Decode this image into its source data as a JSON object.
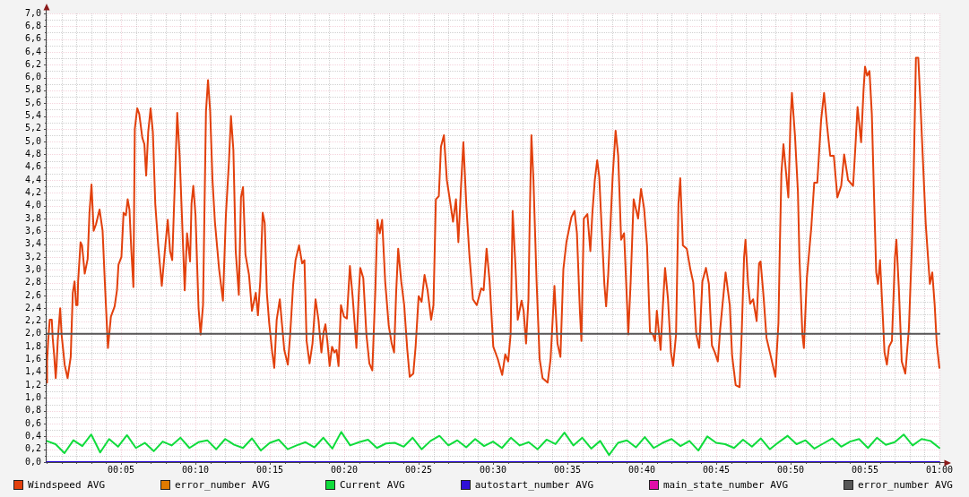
{
  "chart_data": {
    "type": "line",
    "legend": "bottom",
    "grid": true,
    "marker": "none",
    "xlim": [
      0,
      1
    ],
    "xticks": [
      {
        "value": 0,
        "label": null
      },
      {
        "value": 0.0167,
        "label": null
      },
      {
        "value": 0.0333,
        "label": null
      },
      {
        "value": 0.05,
        "label": null
      },
      {
        "value": 0.0667,
        "label": null
      },
      {
        "value": 0.0833,
        "label": "00:05"
      },
      {
        "value": 0.1,
        "label": null
      },
      {
        "value": 0.1167,
        "label": null
      },
      {
        "value": 0.1333,
        "label": null
      },
      {
        "value": 0.15,
        "label": null
      },
      {
        "value": 0.1667,
        "label": "00:10"
      },
      {
        "value": 0.1833,
        "label": null
      },
      {
        "value": 0.2,
        "label": null
      },
      {
        "value": 0.2167,
        "label": null
      },
      {
        "value": 0.2333,
        "label": null
      },
      {
        "value": 0.25,
        "label": "00:15"
      },
      {
        "value": 0.2667,
        "label": null
      },
      {
        "value": 0.2833,
        "label": null
      },
      {
        "value": 0.3,
        "label": null
      },
      {
        "value": 0.3167,
        "label": null
      },
      {
        "value": 0.3333,
        "label": "00:20"
      },
      {
        "value": 0.35,
        "label": null
      },
      {
        "value": 0.3667,
        "label": null
      },
      {
        "value": 0.3833,
        "label": null
      },
      {
        "value": 0.4,
        "label": null
      },
      {
        "value": 0.4167,
        "label": "00:25"
      },
      {
        "value": 0.4333,
        "label": null
      },
      {
        "value": 0.45,
        "label": null
      },
      {
        "value": 0.4667,
        "label": null
      },
      {
        "value": 0.4833,
        "label": null
      },
      {
        "value": 0.5,
        "label": "00:30"
      },
      {
        "value": 0.5167,
        "label": null
      },
      {
        "value": 0.5333,
        "label": null
      },
      {
        "value": 0.55,
        "label": null
      },
      {
        "value": 0.5667,
        "label": null
      },
      {
        "value": 0.5833,
        "label": "00:35"
      },
      {
        "value": 0.6,
        "label": null
      },
      {
        "value": 0.6167,
        "label": null
      },
      {
        "value": 0.6333,
        "label": null
      },
      {
        "value": 0.65,
        "label": null
      },
      {
        "value": 0.6667,
        "label": "00:40"
      },
      {
        "value": 0.6833,
        "label": null
      },
      {
        "value": 0.7,
        "label": null
      },
      {
        "value": 0.7167,
        "label": null
      },
      {
        "value": 0.7333,
        "label": null
      },
      {
        "value": 0.75,
        "label": "00:45"
      },
      {
        "value": 0.7667,
        "label": null
      },
      {
        "value": 0.7833,
        "label": null
      },
      {
        "value": 0.8,
        "label": null
      },
      {
        "value": 0.8167,
        "label": null
      },
      {
        "value": 0.8333,
        "label": "00:50"
      },
      {
        "value": 0.85,
        "label": null
      },
      {
        "value": 0.8667,
        "label": null
      },
      {
        "value": 0.8833,
        "label": null
      },
      {
        "value": 0.9,
        "label": null
      },
      {
        "value": 0.9167,
        "label": "00:55"
      },
      {
        "value": 0.9333,
        "label": null
      },
      {
        "value": 0.95,
        "label": null
      },
      {
        "value": 0.9667,
        "label": null
      },
      {
        "value": 0.9833,
        "label": null
      },
      {
        "value": 1,
        "label": "01:00"
      }
    ],
    "ylim": [
      0,
      7
    ],
    "yticks": [
      {
        "value": 0,
        "label": "0,0"
      },
      {
        "value": 0.1,
        "label": null
      },
      {
        "value": 0.2,
        "label": "0,2"
      },
      {
        "value": 0.3,
        "label": null
      },
      {
        "value": 0.4,
        "label": "0,4"
      },
      {
        "value": 0.5,
        "label": null
      },
      {
        "value": 0.6,
        "label": "0,6"
      },
      {
        "value": 0.7,
        "label": null
      },
      {
        "value": 0.8,
        "label": "0,8"
      },
      {
        "value": 0.9,
        "label": null
      },
      {
        "value": 1,
        "label": "1,0"
      },
      {
        "value": 1.1,
        "label": null
      },
      {
        "value": 1.2,
        "label": "1,2"
      },
      {
        "value": 1.3,
        "label": null
      },
      {
        "value": 1.4,
        "label": "1,4"
      },
      {
        "value": 1.5,
        "label": null
      },
      {
        "value": 1.6,
        "label": "1,6"
      },
      {
        "value": 1.7,
        "label": null
      },
      {
        "value": 1.8,
        "label": "1,8"
      },
      {
        "value": 1.9,
        "label": null
      },
      {
        "value": 2,
        "label": "2,0"
      },
      {
        "value": 2.1,
        "label": null
      },
      {
        "value": 2.2,
        "label": "2,2"
      },
      {
        "value": 2.3,
        "label": null
      },
      {
        "value": 2.4,
        "label": "2,4"
      },
      {
        "value": 2.5,
        "label": null
      },
      {
        "value": 2.6,
        "label": "2,6"
      },
      {
        "value": 2.7,
        "label": null
      },
      {
        "value": 2.8,
        "label": "2,8"
      },
      {
        "value": 2.9,
        "label": null
      },
      {
        "value": 3,
        "label": "3,0"
      },
      {
        "value": 3.1,
        "label": null
      },
      {
        "value": 3.2,
        "label": "3,2"
      },
      {
        "value": 3.3,
        "label": null
      },
      {
        "value": 3.4,
        "label": "3,4"
      },
      {
        "value": 3.5,
        "label": null
      },
      {
        "value": 3.6,
        "label": "3,6"
      },
      {
        "value": 3.7,
        "label": null
      },
      {
        "value": 3.8,
        "label": "3,8"
      },
      {
        "value": 3.9,
        "label": null
      },
      {
        "value": 4,
        "label": "4,0"
      },
      {
        "value": 4.1,
        "label": null
      },
      {
        "value": 4.2,
        "label": "4,2"
      },
      {
        "value": 4.3,
        "label": null
      },
      {
        "value": 4.4,
        "label": "4,4"
      },
      {
        "value": 4.5,
        "label": null
      },
      {
        "value": 4.6,
        "label": "4,6"
      },
      {
        "value": 4.7,
        "label": null
      },
      {
        "value": 4.8,
        "label": "4,8"
      },
      {
        "value": 4.9,
        "label": null
      },
      {
        "value": 5,
        "label": "5,0"
      },
      {
        "value": 5.1,
        "label": null
      },
      {
        "value": 5.2,
        "label": "5,2"
      },
      {
        "value": 5.3,
        "label": null
      },
      {
        "value": 5.4,
        "label": "5,4"
      },
      {
        "value": 5.5,
        "label": null
      },
      {
        "value": 5.6,
        "label": "5,6"
      },
      {
        "value": 5.7,
        "label": null
      },
      {
        "value": 5.8,
        "label": "5,8"
      },
      {
        "value": 5.9,
        "label": null
      },
      {
        "value": 6,
        "label": "6,0"
      },
      {
        "value": 6.1,
        "label": null
      },
      {
        "value": 6.2,
        "label": "6,2"
      },
      {
        "value": 6.3,
        "label": null
      },
      {
        "value": 6.4,
        "label": "6,4"
      },
      {
        "value": 6.5,
        "label": null
      },
      {
        "value": 6.6,
        "label": "6,6"
      },
      {
        "value": 6.7,
        "label": null
      },
      {
        "value": 6.8,
        "label": "6,8"
      },
      {
        "value": 6.9,
        "label": null
      },
      {
        "value": 7,
        "label": "7,0"
      }
    ],
    "series": [
      {
        "name": "Windspeed AVG",
        "color": "#e2400c",
        "x": [
          0,
          0.0005,
          0.0018,
          0.0035,
          0.0058,
          0.0068,
          0.0085,
          0.0102,
          0.0112,
          0.0125,
          0.0152,
          0.0168,
          0.0202,
          0.0235,
          0.027,
          0.0293,
          0.0313,
          0.033,
          0.0346,
          0.0353,
          0.038,
          0.0397,
          0.0427,
          0.046,
          0.048,
          0.0503,
          0.0527,
          0.0553,
          0.0593,
          0.0627,
          0.0653,
          0.0687,
          0.072,
          0.0762,
          0.0788,
          0.0805,
          0.0838,
          0.0862,
          0.0888,
          0.0908,
          0.0928,
          0.0948,
          0.0972,
          0.0988,
          0.1015,
          0.1038,
          0.1072,
          0.1095,
          0.1115,
          0.1138,
          0.1165,
          0.119,
          0.1217,
          0.125,
          0.129,
          0.133,
          0.1357,
          0.1383,
          0.1407,
          0.1433,
          0.1463,
          0.149,
          0.1513,
          0.1547,
          0.1573,
          0.1607,
          0.1623,
          0.1643,
          0.1668,
          0.1702,
          0.1725,
          0.1752,
          0.1785,
          0.1808,
          0.1832,
          0.1858,
          0.1885,
          0.1932,
          0.1975,
          0.2008,
          0.2042,
          0.2065,
          0.2092,
          0.2118,
          0.2153,
          0.2177,
          0.22,
          0.2227,
          0.2267,
          0.23,
          0.2343,
          0.2367,
          0.2393,
          0.242,
          0.2443,
          0.2467,
          0.2493,
          0.2527,
          0.255,
          0.2577,
          0.2612,
          0.2635,
          0.2662,
          0.2702,
          0.2728,
          0.2762,
          0.2788,
          0.2828,
          0.2862,
          0.2888,
          0.2912,
          0.2945,
          0.2978,
          0.3012,
          0.3045,
          0.3078,
          0.3103,
          0.3123,
          0.3147,
          0.317,
          0.3197,
          0.3223,
          0.3247,
          0.327,
          0.3297,
          0.333,
          0.3363,
          0.3397,
          0.343,
          0.347,
          0.3497,
          0.3513,
          0.3547,
          0.3582,
          0.3615,
          0.3648,
          0.3682,
          0.3705,
          0.3732,
          0.3758,
          0.3792,
          0.3832,
          0.3865,
          0.3892,
          0.3915,
          0.3938,
          0.3972,
          0.4005,
          0.404,
          0.4067,
          0.4107,
          0.4133,
          0.4167,
          0.42,
          0.4233,
          0.4267,
          0.4307,
          0.4333,
          0.436,
          0.4393,
          0.4417,
          0.445,
          0.4483,
          0.4518,
          0.4552,
          0.4585,
          0.4612,
          0.4642,
          0.4668,
          0.4702,
          0.4735,
          0.4775,
          0.4818,
          0.4868,
          0.4895,
          0.4928,
          0.4962,
          0.5003,
          0.5053,
          0.5103,
          0.5137,
          0.517,
          0.5197,
          0.522,
          0.5253,
          0.5277,
          0.532,
          0.5343,
          0.537,
          0.5397,
          0.541,
          0.543,
          0.5453,
          0.5488,
          0.5522,
          0.5555,
          0.5612,
          0.5645,
          0.5688,
          0.5722,
          0.5755,
          0.5788,
          0.5822,
          0.5855,
          0.5878,
          0.5913,
          0.594,
          0.5973,
          0.599,
          0.6017,
          0.6057,
          0.609,
          0.6113,
          0.614,
          0.6167,
          0.619,
          0.6223,
          0.6247,
          0.6267,
          0.629,
          0.634,
          0.6373,
          0.6402,
          0.6435,
          0.6468,
          0.6502,
          0.6515,
          0.6542,
          0.6575,
          0.6602,
          0.6625,
          0.6658,
          0.6692,
          0.6725,
          0.6758,
          0.6792,
          0.6815,
          0.6835,
          0.6877,
          0.6903,
          0.6927,
          0.696,
          0.6993,
          0.7017,
          0.705,
          0.7077,
          0.7097,
          0.7127,
          0.717,
          0.721,
          0.7243,
          0.7277,
          0.731,
          0.7345,
          0.7385,
          0.7418,
          0.7452,
          0.7485,
          0.7518,
          0.7545,
          0.7605,
          0.7652,
          0.7678,
          0.7718,
          0.7762,
          0.7785,
          0.7812,
          0.7828,
          0.7857,
          0.788,
          0.7913,
          0.7953,
          0.798,
          0.7997,
          0.803,
          0.8063,
          0.8113,
          0.8163,
          0.8197,
          0.8213,
          0.823,
          0.8253,
          0.8282,
          0.8308,
          0.8332,
          0.8348,
          0.8382,
          0.8415,
          0.8432,
          0.8465,
          0.8482,
          0.8515,
          0.8565,
          0.8598,
          0.8632,
          0.8675,
          0.8708,
          0.8742,
          0.8777,
          0.8817,
          0.8857,
          0.89,
          0.8933,
          0.8977,
          0.9033,
          0.9057,
          0.9083,
          0.9123,
          0.915,
          0.9167,
          0.919,
          0.9217,
          0.9243,
          0.9268,
          0.9292,
          0.9312,
          0.9335,
          0.9358,
          0.9385,
          0.9412,
          0.9435,
          0.9468,
          0.9502,
          0.9518,
          0.9545,
          0.9578,
          0.9618,
          0.9658,
          0.9692,
          0.9712,
          0.9737,
          0.9763,
          0.9787,
          0.9813,
          0.9847,
          0.987,
          0.9893,
          0.992,
          0.9947,
          0.997,
          1
        ],
        "values": [
          1.24,
          1.57,
          1.9,
          2.22,
          2.22,
          1.94,
          1.66,
          1.31,
          1.52,
          1.9,
          2.4,
          1.99,
          1.52,
          1.31,
          1.64,
          2.64,
          2.82,
          2.45,
          2.45,
          2.82,
          3.43,
          3.38,
          2.94,
          3.17,
          3.89,
          4.33,
          3.61,
          3.71,
          3.94,
          3.61,
          2.78,
          1.78,
          2.27,
          2.43,
          2.68,
          3.08,
          3.2,
          3.89,
          3.85,
          4.1,
          3.94,
          3.33,
          2.73,
          5.2,
          5.52,
          5.43,
          5.06,
          4.96,
          4.47,
          5.15,
          5.52,
          5.15,
          4.03,
          3.38,
          2.75,
          3.38,
          3.78,
          3.29,
          3.15,
          4.22,
          5.45,
          4.78,
          3.94,
          2.68,
          3.57,
          3.13,
          4.03,
          4.31,
          3.85,
          2.4,
          1.99,
          2.45,
          5.47,
          5.96,
          5.47,
          4.4,
          3.75,
          3.01,
          2.52,
          3.85,
          4.68,
          5.4,
          4.87,
          3.29,
          2.61,
          4.13,
          4.29,
          3.24,
          2.92,
          2.36,
          2.64,
          2.29,
          2.82,
          3.89,
          3.73,
          2.64,
          2.17,
          1.71,
          1.47,
          2.22,
          2.54,
          2.17,
          1.75,
          1.52,
          1.99,
          2.78,
          3.15,
          3.38,
          3.1,
          3.15,
          1.89,
          1.54,
          1.85,
          2.54,
          2.22,
          1.71,
          2.03,
          2.15,
          1.85,
          1.5,
          1.8,
          1.71,
          1.75,
          1.5,
          2.45,
          2.27,
          2.24,
          3.06,
          2.54,
          1.78,
          2.64,
          3.03,
          2.87,
          1.99,
          1.54,
          1.43,
          2.68,
          3.78,
          3.57,
          3.78,
          2.82,
          2.13,
          1.85,
          1.71,
          2.64,
          3.33,
          2.82,
          2.45,
          1.75,
          1.33,
          1.38,
          1.8,
          2.59,
          2.5,
          2.92,
          2.68,
          2.22,
          2.45,
          4.1,
          4.15,
          4.92,
          5.1,
          4.4,
          4.08,
          3.75,
          4.1,
          3.43,
          4.31,
          4.99,
          3.99,
          3.24,
          2.54,
          2.45,
          2.71,
          2.68,
          3.33,
          2.82,
          1.8,
          1.61,
          1.36,
          1.68,
          1.57,
          1.99,
          3.92,
          3.01,
          2.22,
          2.52,
          2.36,
          1.85,
          2.54,
          3.71,
          5.1,
          4.4,
          2.82,
          1.61,
          1.31,
          1.24,
          1.61,
          2.75,
          1.85,
          1.64,
          3.01,
          3.43,
          3.66,
          3.82,
          3.92,
          3.57,
          2.36,
          1.89,
          3.8,
          3.87,
          3.29,
          3.89,
          4.4,
          4.71,
          4.45,
          3.47,
          2.78,
          2.43,
          2.92,
          4.45,
          5.17,
          4.78,
          3.47,
          3.57,
          2.45,
          1.99,
          2.82,
          4.1,
          3.94,
          3.8,
          4.26,
          3.96,
          3.38,
          2.03,
          1.99,
          1.89,
          2.36,
          1.75,
          2.45,
          3.03,
          2.54,
          1.71,
          1.5,
          1.99,
          4.03,
          4.43,
          3.38,
          3.33,
          3.01,
          2.8,
          1.99,
          1.78,
          2.82,
          3.03,
          2.78,
          1.82,
          1.71,
          1.57,
          2.08,
          2.96,
          2.45,
          1.66,
          1.2,
          1.17,
          1.99,
          3.2,
          3.47,
          2.78,
          2.47,
          2.54,
          2.2,
          3.1,
          3.13,
          2.59,
          1.94,
          1.64,
          1.33,
          2.17,
          3.38,
          4.5,
          4.96,
          4.52,
          4.13,
          5.34,
          5.76,
          5.1,
          4.22,
          3.2,
          1.99,
          1.78,
          2.87,
          3.66,
          4.36,
          4.36,
          5.34,
          5.76,
          5.24,
          4.78,
          4.78,
          4.13,
          4.31,
          4.8,
          4.4,
          4.31,
          4.87,
          5.54,
          4.99,
          5.8,
          6.17,
          6.03,
          6.1,
          5.43,
          4.13,
          2.96,
          2.78,
          3.15,
          2.5,
          1.71,
          1.52,
          1.8,
          1.89,
          3.2,
          3.47,
          2.73,
          1.57,
          1.38,
          2.08,
          3.38,
          4.5,
          6.31,
          6.31,
          5.61,
          4.78,
          3.71,
          3.24,
          2.78,
          2.96,
          2.45,
          1.85,
          1.47
        ]
      },
      {
        "name": "error_number AVG",
        "color": "#e07a00"
      },
      {
        "name": "Current AVG",
        "color": "#10dc3c",
        "x": [
          0,
          0.01,
          0.02,
          0.03,
          0.04,
          0.05,
          0.06,
          0.07,
          0.08,
          0.09,
          0.1,
          0.11,
          0.12,
          0.13,
          0.14,
          0.15,
          0.16,
          0.17,
          0.18,
          0.19,
          0.2,
          0.21,
          0.22,
          0.23,
          0.24,
          0.25,
          0.26,
          0.27,
          0.28,
          0.29,
          0.3,
          0.31,
          0.32,
          0.33,
          0.34,
          0.35,
          0.36,
          0.37,
          0.38,
          0.39,
          0.4,
          0.41,
          0.42,
          0.43,
          0.44,
          0.45,
          0.46,
          0.47,
          0.48,
          0.49,
          0.5,
          0.51,
          0.52,
          0.53,
          0.54,
          0.55,
          0.56,
          0.57,
          0.58,
          0.59,
          0.6,
          0.61,
          0.62,
          0.63,
          0.64,
          0.65,
          0.66,
          0.67,
          0.68,
          0.69,
          0.7,
          0.71,
          0.72,
          0.73,
          0.74,
          0.75,
          0.76,
          0.77,
          0.78,
          0.79,
          0.8,
          0.81,
          0.82,
          0.83,
          0.84,
          0.85,
          0.86,
          0.87,
          0.88,
          0.89,
          0.9,
          0.91,
          0.92,
          0.93,
          0.94,
          0.95,
          0.96,
          0.97,
          0.98,
          0.99,
          1
        ],
        "values": [
          0.33,
          0.28,
          0.14,
          0.34,
          0.25,
          0.43,
          0.15,
          0.36,
          0.24,
          0.42,
          0.22,
          0.3,
          0.17,
          0.32,
          0.26,
          0.38,
          0.22,
          0.31,
          0.34,
          0.2,
          0.36,
          0.27,
          0.22,
          0.37,
          0.18,
          0.3,
          0.35,
          0.2,
          0.26,
          0.31,
          0.23,
          0.38,
          0.21,
          0.47,
          0.26,
          0.31,
          0.35,
          0.22,
          0.29,
          0.3,
          0.24,
          0.38,
          0.2,
          0.33,
          0.41,
          0.26,
          0.34,
          0.23,
          0.36,
          0.25,
          0.32,
          0.22,
          0.38,
          0.26,
          0.31,
          0.2,
          0.35,
          0.28,
          0.46,
          0.26,
          0.38,
          0.21,
          0.33,
          0.11,
          0.3,
          0.34,
          0.23,
          0.39,
          0.22,
          0.3,
          0.36,
          0.25,
          0.33,
          0.18,
          0.4,
          0.3,
          0.28,
          0.22,
          0.35,
          0.24,
          0.37,
          0.2,
          0.31,
          0.41,
          0.28,
          0.34,
          0.21,
          0.29,
          0.37,
          0.24,
          0.32,
          0.36,
          0.22,
          0.38,
          0.27,
          0.31,
          0.43,
          0.26,
          0.36,
          0.33,
          0.22
        ]
      },
      {
        "name": "autostart_number AVG",
        "color": "#2f0fd8",
        "x": [
          0,
          1
        ],
        "values": [
          0,
          0
        ]
      },
      {
        "name": "main_state_number AVG",
        "color": "#e010a8"
      },
      {
        "name": "error_number AVG",
        "color": "#575757",
        "x": [
          0,
          1
        ],
        "values": [
          2,
          2
        ]
      }
    ]
  }
}
